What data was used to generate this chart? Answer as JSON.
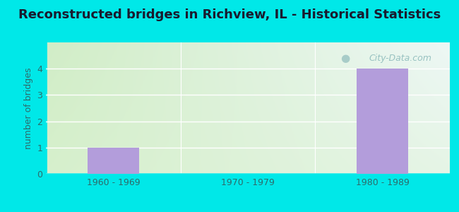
{
  "title": "Reconstructed bridges in Richview, IL - Historical Statistics",
  "categories": [
    "1960 - 1969",
    "1970 - 1979",
    "1980 - 1989"
  ],
  "values": [
    1,
    0,
    4
  ],
  "bar_color": "#b39ddb",
  "ylabel": "number of bridges",
  "ylim": [
    0,
    5
  ],
  "yticks": [
    0,
    1,
    2,
    3,
    4,
    5
  ],
  "background_outer": "#00e8e8",
  "title_fontsize": 13,
  "title_color": "#1a1a2e",
  "axis_label_color": "#2e6b6b",
  "tick_color": "#2e6b6b",
  "watermark": "City-Data.com",
  "bg_color_topleft": "#c8e6c0",
  "bg_color_topright": "#e8f4f8",
  "bg_color_bottomleft": "#d4edd4",
  "bg_color_bottomright": "#f0f8f0",
  "bar_width": 0.38
}
